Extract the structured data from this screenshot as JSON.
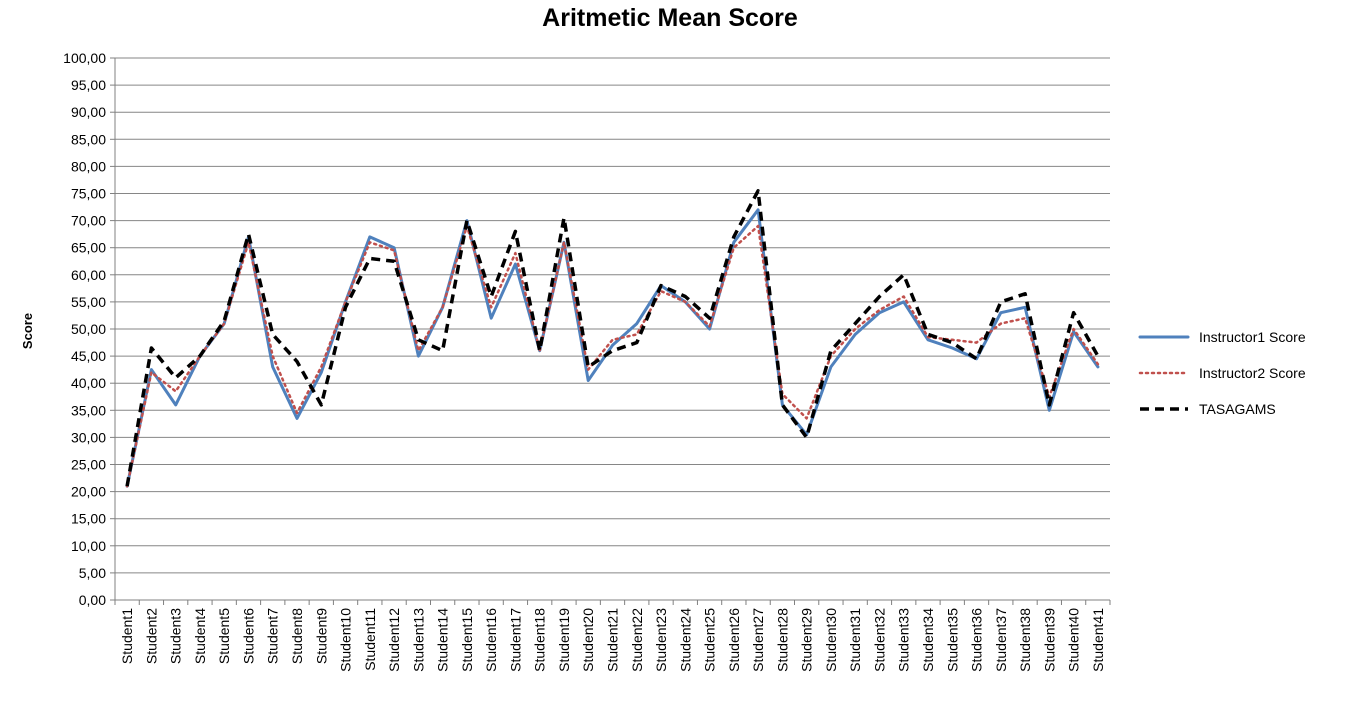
{
  "chart_data": {
    "type": "line",
    "title": "Aritmetic Mean Score",
    "ylabel": "Score",
    "xlabel": "",
    "ylim": [
      0,
      100
    ],
    "ytick_step": 5,
    "ytick_labels": [
      "0,00",
      "5,00",
      "10,00",
      "15,00",
      "20,00",
      "25,00",
      "30,00",
      "35,00",
      "40,00",
      "45,00",
      "50,00",
      "55,00",
      "60,00",
      "65,00",
      "70,00",
      "75,00",
      "80,00",
      "85,00",
      "90,00",
      "95,00",
      "100,00"
    ],
    "grid": true,
    "legend_position": "right",
    "categories": [
      "Student1",
      "Student2",
      "Student3",
      "Student4",
      "Student5",
      "Student6",
      "Student7",
      "Student8",
      "Student9",
      "Student10",
      "Student11",
      "Student12",
      "Student13",
      "Student14",
      "Student15",
      "Student16",
      "Student17",
      "Student18",
      "Student19",
      "Student20",
      "Student21",
      "Student22",
      "Student23",
      "Student24",
      "Student25",
      "Student26",
      "Student27",
      "Student28",
      "Student29",
      "Student30",
      "Student31",
      "Student32",
      "Student33",
      "Student34",
      "Student35",
      "Student36",
      "Student37",
      "Student38",
      "Student39",
      "Student40",
      "Student41"
    ],
    "series": [
      {
        "name": "Instructor1 Score",
        "color": "#4f81bd",
        "style": "solid",
        "values": [
          21,
          42.5,
          36,
          45,
          51,
          67,
          43,
          33.5,
          42,
          55,
          67,
          65,
          45,
          54,
          70,
          52,
          62,
          46,
          66,
          40.5,
          47,
          51,
          58,
          55,
          50,
          66,
          72,
          36,
          30.5,
          43,
          49,
          53,
          55,
          48,
          46.5,
          44.5,
          53,
          54,
          35,
          49.5,
          43
        ]
      },
      {
        "name": "Instructor2 Score",
        "color": "#c0504d",
        "style": "dotted",
        "values": [
          21,
          42,
          38.5,
          45,
          51,
          66,
          45,
          34.5,
          43,
          55,
          66,
          64.5,
          46,
          54,
          69,
          54,
          64,
          46,
          66,
          42.5,
          48,
          49,
          57,
          55,
          50.5,
          65,
          69,
          38,
          33.5,
          45,
          50,
          53.5,
          56,
          48.5,
          48,
          47.5,
          51,
          52,
          37.5,
          50,
          43.5
        ]
      },
      {
        "name": "TASAGAMS",
        "color": "#000000",
        "style": "dashed",
        "values": [
          21,
          46.5,
          41,
          45,
          51.5,
          67.5,
          49,
          44,
          36,
          54,
          63,
          62.5,
          48,
          46,
          70,
          56,
          68,
          46,
          70.5,
          43,
          46,
          47.5,
          58,
          56,
          52,
          67,
          75.5,
          36,
          30,
          46,
          51,
          56,
          60,
          49,
          47.5,
          44.5,
          55,
          56.5,
          36,
          53,
          45
        ]
      }
    ]
  }
}
